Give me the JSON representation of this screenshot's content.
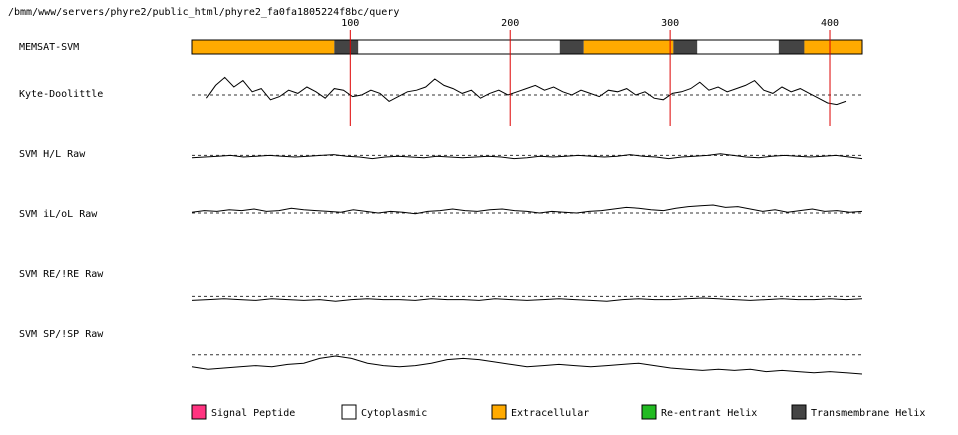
{
  "header": {
    "path": "/bmm/www/servers/phyre2/public_html/phyre2_fa0fa1805224f8bc/query"
  },
  "chart_data": {
    "type": "line",
    "x_ticks": [
      100,
      200,
      300,
      400
    ],
    "xlim": [
      1,
      420
    ],
    "tracks": [
      {
        "label": "MEMSAT-SVM",
        "kind": "topology",
        "segments": [
          {
            "class": "extracellular",
            "start": 1,
            "end": 90
          },
          {
            "class": "tm",
            "start": 90,
            "end": 105
          },
          {
            "class": "cytoplasmic",
            "start": 105,
            "end": 231
          },
          {
            "class": "tm",
            "start": 231,
            "end": 246
          },
          {
            "class": "extracellular",
            "start": 246,
            "end": 302
          },
          {
            "class": "tm",
            "start": 302,
            "end": 317
          },
          {
            "class": "cytoplasmic",
            "start": 317,
            "end": 368
          },
          {
            "class": "tm",
            "start": 368,
            "end": 384
          },
          {
            "class": "extracellular",
            "start": 384,
            "end": 420
          }
        ]
      },
      {
        "label": "Kyte-Doolittle",
        "kind": "profile",
        "xrange": [
          10,
          410
        ],
        "ylim": [
          -1,
          1
        ],
        "threshold": 0,
        "values": [
          -0.2,
          0.6,
          1.1,
          0.5,
          0.9,
          0.2,
          0.4,
          -0.3,
          -0.1,
          0.3,
          0.1,
          0.5,
          0.2,
          -0.2,
          0.4,
          0.3,
          -0.1,
          0.0,
          0.3,
          0.1,
          -0.4,
          -0.1,
          0.2,
          0.3,
          0.5,
          1.0,
          0.6,
          0.4,
          0.1,
          0.3,
          -0.2,
          0.1,
          0.3,
          0.0,
          0.2,
          0.4,
          0.6,
          0.3,
          0.5,
          0.2,
          0.0,
          0.3,
          0.1,
          -0.1,
          0.3,
          0.2,
          0.4,
          0.0,
          0.2,
          -0.2,
          -0.3,
          0.1,
          0.2,
          0.4,
          0.8,
          0.3,
          0.5,
          0.2,
          0.4,
          0.6,
          0.9,
          0.3,
          0.1,
          0.5,
          0.2,
          0.4,
          0.1,
          -0.2,
          -0.5,
          -0.6,
          -0.4
        ]
      },
      {
        "label": "SVM H/L Raw",
        "kind": "profile",
        "xrange": [
          1,
          420
        ],
        "ylim": [
          -1,
          1
        ],
        "threshold": 0.2,
        "values": [
          -0.1,
          0.0,
          0.1,
          0.2,
          0.0,
          0.1,
          0.2,
          0.1,
          0.0,
          0.1,
          0.2,
          0.3,
          0.1,
          0.0,
          -0.2,
          0.0,
          0.1,
          0.0,
          -0.1,
          0.1,
          0.0,
          -0.1,
          0.0,
          0.1,
          0.0,
          -0.2,
          -0.1,
          0.1,
          0.0,
          0.1,
          0.2,
          0.1,
          0.0,
          0.1,
          0.3,
          0.1,
          0.0,
          -0.2,
          0.0,
          0.1,
          0.2,
          0.4,
          0.2,
          0.0,
          -0.1,
          0.1,
          0.2,
          0.1,
          0.0,
          0.1,
          0.2,
          0.0,
          -0.2
        ]
      },
      {
        "label": "SVM iL/oL Raw",
        "kind": "profile",
        "xrange": [
          1,
          420
        ],
        "ylim": [
          -1,
          1
        ],
        "threshold": 0,
        "values": [
          0.1,
          0.3,
          0.2,
          0.4,
          0.3,
          0.5,
          0.2,
          0.3,
          0.6,
          0.4,
          0.3,
          0.2,
          0.1,
          0.4,
          0.2,
          0.0,
          0.2,
          0.1,
          -0.1,
          0.2,
          0.3,
          0.5,
          0.3,
          0.2,
          0.4,
          0.5,
          0.3,
          0.2,
          0.0,
          0.2,
          0.1,
          0.0,
          0.2,
          0.3,
          0.5,
          0.7,
          0.6,
          0.4,
          0.3,
          0.6,
          0.8,
          0.9,
          1.0,
          0.7,
          0.8,
          0.5,
          0.2,
          0.4,
          0.1,
          0.3,
          0.5,
          0.2,
          0.3,
          0.1,
          0.2
        ]
      },
      {
        "label": "SVM RE/!RE Raw",
        "kind": "profile",
        "xrange": [
          1,
          420
        ],
        "ylim": [
          -1,
          1
        ],
        "threshold": 0.2,
        "values": [
          -0.3,
          -0.2,
          -0.1,
          -0.2,
          -0.3,
          -0.1,
          -0.2,
          -0.3,
          -0.2,
          -0.4,
          -0.2,
          -0.1,
          -0.2,
          -0.2,
          -0.3,
          -0.1,
          -0.2,
          -0.2,
          -0.3,
          -0.1,
          -0.2,
          -0.3,
          -0.2,
          -0.1,
          -0.2,
          -0.3,
          -0.4,
          -0.2,
          -0.1,
          -0.2,
          -0.2,
          -0.1,
          0.0,
          -0.1,
          -0.2,
          -0.3,
          -0.2,
          -0.1,
          -0.2,
          -0.2,
          -0.1,
          -0.2,
          -0.1
        ]
      },
      {
        "label": "SVM SP/!SP Raw",
        "kind": "profile",
        "xrange": [
          1,
          420
        ],
        "ylim": [
          -1,
          1
        ],
        "threshold": 0.6,
        "values": [
          -0.4,
          -0.6,
          -0.5,
          -0.4,
          -0.3,
          -0.4,
          -0.2,
          -0.1,
          0.3,
          0.5,
          0.3,
          -0.1,
          -0.3,
          -0.4,
          -0.3,
          -0.1,
          0.2,
          0.3,
          0.2,
          0.0,
          -0.2,
          -0.4,
          -0.3,
          -0.2,
          -0.3,
          -0.4,
          -0.3,
          -0.2,
          -0.1,
          -0.3,
          -0.5,
          -0.6,
          -0.7,
          -0.6,
          -0.7,
          -0.6,
          -0.8,
          -0.7,
          -0.8,
          -0.9,
          -0.8,
          -0.9,
          -1.0
        ]
      }
    ],
    "legend": [
      {
        "label": "Signal Peptide",
        "color": "#ff3380"
      },
      {
        "label": "Cytoplasmic",
        "color": "#ffffff"
      },
      {
        "label": "Extracellular",
        "color": "#ffaa00"
      },
      {
        "label": "Re-entrant Helix",
        "color": "#22bb22"
      },
      {
        "label": "Transmembrane Helix",
        "color": "#444444"
      }
    ],
    "colors": {
      "extracellular": "#ffaa00",
      "cytoplasmic": "#ffffff",
      "tm": "#444444",
      "marker": "#dd0000"
    }
  }
}
